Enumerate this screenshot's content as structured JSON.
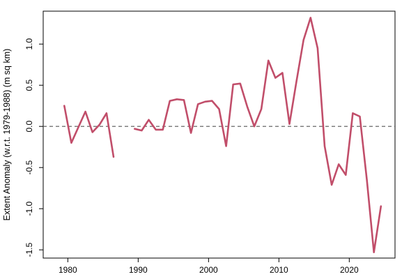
{
  "chart_data": {
    "type": "line",
    "title": "",
    "xlabel": "",
    "ylabel": "Extent Anomaly (w.r.t. 1979-1988) (m sq km)",
    "xlim": [
      1976.5,
      2026.5
    ],
    "ylim": [
      -1.6,
      1.4
    ],
    "x_ticks": [
      1980,
      1990,
      2000,
      2010,
      2020
    ],
    "x_tick_labels": [
      "1980",
      "1990",
      "2000",
      "2010",
      "2020"
    ],
    "y_ticks": [
      -1.5,
      -1.0,
      -0.5,
      0.0,
      0.5,
      1.0
    ],
    "y_tick_labels": [
      "-1.5",
      "-1.0",
      "-0.5",
      "0.0",
      "0.5",
      "1.0"
    ],
    "reference_line": {
      "y": 0.0,
      "style": "dashed",
      "color": "#555555"
    },
    "grid": false,
    "legend": "none",
    "series": [
      {
        "color": "#c14e6a",
        "points": [
          [
            1979.5,
            0.25
          ],
          [
            1980.5,
            -0.2
          ],
          [
            1981.5,
            -0.01
          ],
          [
            1982.5,
            0.18
          ],
          [
            1983.5,
            -0.07
          ],
          [
            1984.5,
            0.02
          ],
          [
            1985.5,
            0.16
          ],
          [
            1986.5,
            -0.37
          ],
          [
            1987.5,
            null
          ],
          [
            1988.5,
            null
          ],
          [
            1989.5,
            -0.03
          ],
          [
            1990.5,
            -0.05
          ],
          [
            1991.5,
            0.08
          ],
          [
            1992.5,
            -0.04
          ],
          [
            1993.5,
            -0.04
          ],
          [
            1994.5,
            0.31
          ],
          [
            1995.5,
            0.33
          ],
          [
            1996.5,
            0.32
          ],
          [
            1997.5,
            -0.08
          ],
          [
            1998.5,
            0.27
          ],
          [
            1999.5,
            0.3
          ],
          [
            2000.5,
            0.31
          ],
          [
            2001.5,
            0.21
          ],
          [
            2002.5,
            -0.24
          ],
          [
            2003.5,
            0.51
          ],
          [
            2004.5,
            0.52
          ],
          [
            2005.5,
            0.24
          ],
          [
            2006.5,
            0.0
          ],
          [
            2007.5,
            0.21
          ],
          [
            2008.5,
            0.8
          ],
          [
            2009.5,
            0.59
          ],
          [
            2010.5,
            0.65
          ],
          [
            2011.5,
            0.03
          ],
          [
            2012.5,
            0.55
          ],
          [
            2013.5,
            1.05
          ],
          [
            2014.5,
            1.32
          ],
          [
            2015.5,
            0.95
          ],
          [
            2016.5,
            -0.24
          ],
          [
            2017.5,
            -0.71
          ],
          [
            2018.5,
            -0.46
          ],
          [
            2019.5,
            -0.59
          ],
          [
            2020.5,
            0.16
          ],
          [
            2021.5,
            0.12
          ],
          [
            2022.5,
            -0.65
          ],
          [
            2023.5,
            -1.53
          ],
          [
            2024.5,
            -0.97
          ]
        ]
      }
    ]
  }
}
